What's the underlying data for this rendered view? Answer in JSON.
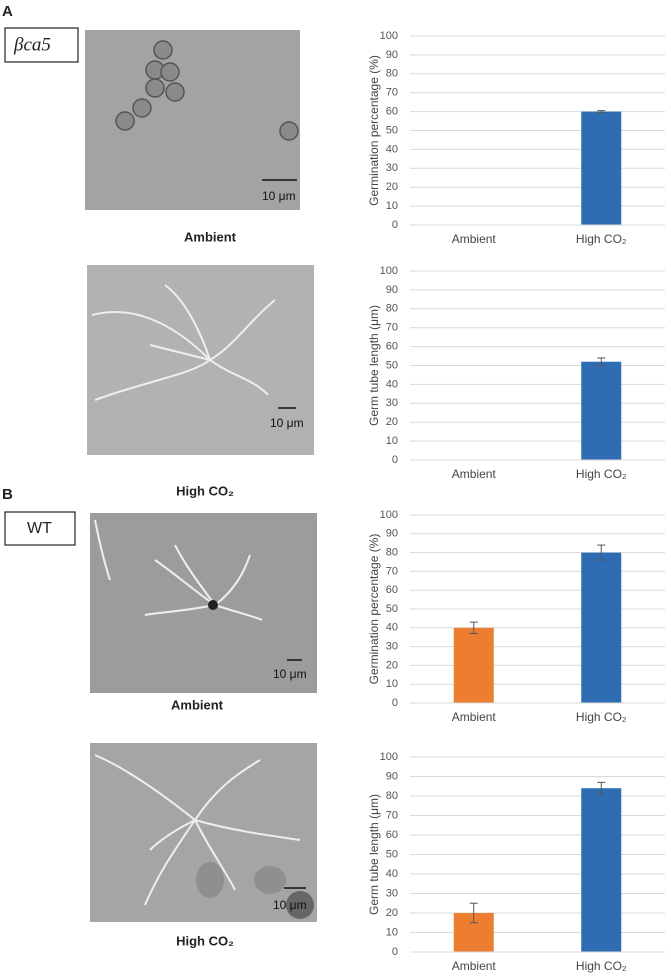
{
  "panels": [
    {
      "label": "A",
      "strain": "βca5",
      "images": [
        {
          "caption": "Ambient",
          "scale": "10 μm"
        },
        {
          "caption": "High CO₂",
          "scale": "10 μm"
        }
      ]
    },
    {
      "label": "B",
      "strain": "WT",
      "images": [
        {
          "caption": "Ambient",
          "scale": "10 μm"
        },
        {
          "caption": "High CO₂",
          "scale": "10 μm"
        }
      ]
    }
  ],
  "chart_data": [
    {
      "type": "bar",
      "ylabel": "Germination percentage (%)",
      "categories": [
        "Ambient",
        "High CO₂"
      ],
      "values": [
        0,
        60
      ],
      "errors": [
        null,
        0.5
      ],
      "colors": [
        "#ed7d31",
        "#2e6db4"
      ],
      "ylim": [
        0,
        100
      ],
      "yticks": [
        0,
        10,
        20,
        30,
        40,
        50,
        60,
        70,
        80,
        90,
        100
      ],
      "grid": true
    },
    {
      "type": "bar",
      "ylabel": "Germ tube length (μm)",
      "categories": [
        "Ambient",
        "High CO₂"
      ],
      "values": [
        0,
        52
      ],
      "errors": [
        null,
        2
      ],
      "colors": [
        "#ed7d31",
        "#2e6db4"
      ],
      "ylim": [
        0,
        100
      ],
      "yticks": [
        0,
        10,
        20,
        30,
        40,
        50,
        60,
        70,
        80,
        90,
        100
      ],
      "grid": true
    },
    {
      "type": "bar",
      "ylabel": "Germination percentage (%)",
      "categories": [
        "Ambient",
        "High CO₂"
      ],
      "values": [
        40,
        80
      ],
      "errors": [
        3,
        4
      ],
      "colors": [
        "#ed7d31",
        "#2e6db4"
      ],
      "ylim": [
        0,
        100
      ],
      "yticks": [
        0,
        10,
        20,
        30,
        40,
        50,
        60,
        70,
        80,
        90,
        100
      ],
      "grid": true
    },
    {
      "type": "bar",
      "ylabel": "Germ tube length (μm)",
      "categories": [
        "Ambient",
        "High CO₂"
      ],
      "values": [
        20,
        84
      ],
      "errors": [
        5,
        3
      ],
      "colors": [
        "#ed7d31",
        "#2e6db4"
      ],
      "ylim": [
        0,
        100
      ],
      "yticks": [
        0,
        10,
        20,
        30,
        40,
        50,
        60,
        70,
        80,
        90,
        100
      ],
      "grid": true
    }
  ]
}
